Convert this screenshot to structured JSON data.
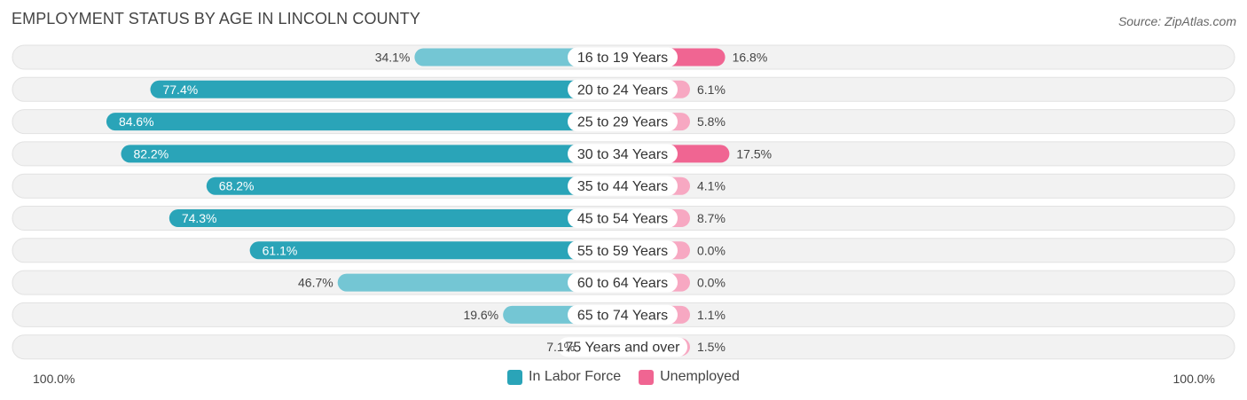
{
  "title": "EMPLOYMENT STATUS BY AGE IN LINCOLN COUNTY",
  "source": "Source: ZipAtlas.com",
  "axis": {
    "left_label": "100.0%",
    "right_label": "100.0%"
  },
  "legend": {
    "labor_label": "In Labor Force",
    "unemployed_label": "Unemployed"
  },
  "colors": {
    "labor_strong": "#2aa4b8",
    "labor_light": "#74c6d4",
    "unemp_strong": "#f06592",
    "unemp_light": "#f7a8c2",
    "row_bg": "#f2f2f2"
  },
  "chart_data": {
    "type": "bar",
    "orientation": "horizontal-diverging",
    "title": "EMPLOYMENT STATUS BY AGE IN LINCOLN COUNTY",
    "categories": [
      "16 to 19 Years",
      "20 to 24 Years",
      "25 to 29 Years",
      "30 to 34 Years",
      "35 to 44 Years",
      "45 to 54 Years",
      "55 to 59 Years",
      "60 to 64 Years",
      "65 to 74 Years",
      "75 Years and over"
    ],
    "series": [
      {
        "name": "In Labor Force",
        "values": [
          34.1,
          77.4,
          84.6,
          82.2,
          68.2,
          74.3,
          61.1,
          46.7,
          19.6,
          7.1
        ],
        "labels": [
          "34.1%",
          "77.4%",
          "84.6%",
          "82.2%",
          "68.2%",
          "74.3%",
          "61.1%",
          "46.7%",
          "19.6%",
          "7.1%"
        ]
      },
      {
        "name": "Unemployed",
        "values": [
          16.8,
          6.1,
          5.8,
          17.5,
          4.1,
          8.7,
          0.0,
          0.0,
          1.1,
          1.5
        ],
        "labels": [
          "16.8%",
          "6.1%",
          "5.8%",
          "17.5%",
          "4.1%",
          "8.7%",
          "0.0%",
          "0.0%",
          "1.1%",
          "1.5%"
        ]
      }
    ],
    "xlim": [
      -100,
      100
    ],
    "legend_position": "bottom-center"
  }
}
